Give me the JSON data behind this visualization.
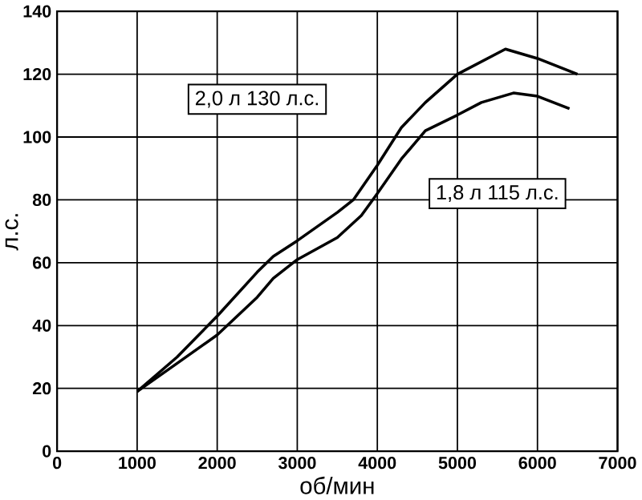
{
  "chart_data": {
    "type": "line",
    "xlabel": "об/мин",
    "ylabel": "л.с.",
    "xlim": [
      0,
      7000
    ],
    "xticks": [
      0,
      1000,
      2000,
      3000,
      4000,
      5000,
      6000,
      7000
    ],
    "ylim": [
      0,
      140
    ],
    "yticks": [
      0,
      20,
      40,
      60,
      80,
      100,
      120,
      140
    ],
    "grid": true,
    "marker": "none",
    "line_style": "solid",
    "series": [
      {
        "name": "2,0 л 130 л.с.",
        "color": "#000000",
        "x": [
          1000,
          1500,
          2000,
          2500,
          2700,
          3000,
          3500,
          3700,
          4000,
          4300,
          4600,
          5000,
          5300,
          5600,
          6000,
          6500
        ],
        "values": [
          19,
          30,
          43,
          57,
          62,
          67,
          76,
          80,
          91,
          103,
          111,
          120,
          124,
          128,
          125,
          120
        ]
      },
      {
        "name": "1,8 л 115 л.с.",
        "color": "#000000",
        "x": [
          1000,
          1500,
          2000,
          2500,
          2700,
          3000,
          3500,
          3800,
          4000,
          4300,
          4600,
          5000,
          5300,
          5700,
          6000,
          6400
        ],
        "values": [
          19,
          28,
          37,
          49,
          55,
          61,
          68,
          75,
          82,
          93,
          102,
          107,
          111,
          114,
          113,
          109
        ]
      }
    ]
  }
}
